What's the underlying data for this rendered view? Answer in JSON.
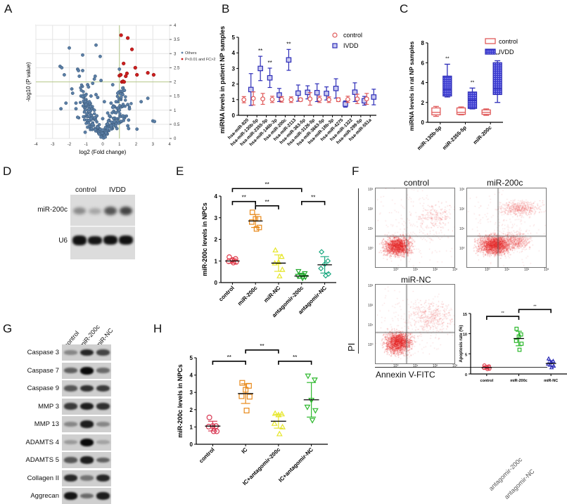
{
  "panels": {
    "A": "A",
    "B": "B",
    "C": "C",
    "D": "D",
    "E": "E",
    "F": "F",
    "G": "G",
    "H": "H"
  },
  "chart_data": [
    {
      "id": "A",
      "type": "scatter",
      "title": "",
      "xlabel": "log2 (Fold change)",
      "ylabel": "-log10 (P value)",
      "xlim": [
        -4,
        4
      ],
      "ylim": [
        0,
        4
      ],
      "xticks": [
        "-4",
        "-3",
        "-2",
        "-1",
        "0",
        "1",
        "2",
        "3",
        "4"
      ],
      "yticks": [
        "0",
        "0.5",
        "1",
        "1.5",
        "2",
        "2.5",
        "3",
        "3.5",
        "4"
      ],
      "threshold_lines": {
        "x": 1,
        "y": 2
      },
      "grid": true,
      "legend": {
        "position": "right",
        "entries": [
          {
            "label": "Others",
            "color": "#5b7fa6"
          },
          {
            "label": "P<0.01 and FC>2",
            "color": "#cc1f1f"
          }
        ]
      },
      "series": [
        {
          "name": "P<0.01 and FC>2",
          "color": "#cc1f1f",
          "points": [
            [
              1.1,
              3.65
            ],
            [
              1.5,
              3.55
            ],
            [
              1.75,
              3.15
            ],
            [
              1.25,
              2.65
            ],
            [
              1.95,
              2.5
            ],
            [
              1.45,
              2.3
            ],
            [
              1.38,
              2.2
            ],
            [
              2.05,
              2.25
            ],
            [
              2.7,
              2.32
            ],
            [
              3.05,
              2.25
            ],
            [
              1.0,
              2.22
            ],
            [
              1.15,
              2.0
            ],
            [
              1.22,
              2.02
            ],
            [
              1.28,
              2.0
            ],
            [
              1.08,
              2.25
            ]
          ]
        },
        {
          "name": "Others",
          "color": "#5b7fa6",
          "points": [
            [
              -2.0,
              3.2
            ],
            [
              -0.4,
              3.3
            ],
            [
              -1.2,
              2.95
            ],
            [
              -0.15,
              2.9
            ],
            [
              -2.55,
              2.55
            ],
            [
              -2.45,
              2.5
            ],
            [
              -2.3,
              2.25
            ],
            [
              -1.5,
              2.45
            ],
            [
              -1.45,
              2.4
            ],
            [
              -1.2,
              2.4
            ],
            [
              -1.4,
              2.2
            ],
            [
              -0.45,
              2.2
            ],
            [
              -0.5,
              2.1
            ],
            [
              -0.1,
              2.05
            ],
            [
              1.0,
              2.45
            ],
            [
              -0.6,
              1.95
            ],
            [
              -0.9,
              1.9
            ],
            [
              -0.85,
              1.82
            ],
            [
              -1.85,
              1.75
            ],
            [
              -1.8,
              1.6
            ],
            [
              -1.3,
              1.5
            ],
            [
              -1.2,
              1.48
            ],
            [
              -0.7,
              1.5
            ],
            [
              -0.4,
              1.55
            ],
            [
              -0.3,
              1.45
            ],
            [
              0.6,
              1.9
            ],
            [
              0.9,
              1.6
            ],
            [
              1.2,
              1.55
            ],
            [
              1.3,
              1.7
            ],
            [
              1.1,
              1.45
            ],
            [
              2.7,
              1.42
            ],
            [
              2.3,
              1.3
            ],
            [
              -2.2,
              1.25
            ],
            [
              -1.6,
              1.25
            ],
            [
              -1.0,
              1.2
            ],
            [
              -0.8,
              1.3
            ],
            [
              0.1,
              1.3
            ],
            [
              0.5,
              1.25
            ],
            [
              0.8,
              1.3
            ],
            [
              1.5,
              1.2
            ],
            [
              1.6,
              1.05
            ],
            [
              -2.5,
              1.05
            ],
            [
              -1.5,
              0.75
            ],
            [
              -1.6,
              1.05
            ],
            [
              -0.5,
              1.0
            ],
            [
              0.0,
              0.7
            ],
            [
              0.3,
              0.9
            ],
            [
              0.6,
              1.1
            ],
            [
              1.0,
              1.0
            ],
            [
              1.2,
              0.8
            ],
            [
              1.55,
              0.65
            ],
            [
              1.5,
              0.45
            ],
            [
              1.55,
              0.35
            ],
            [
              2.05,
              0.33
            ],
            [
              3.0,
              0.62
            ],
            [
              3.1,
              0.6
            ],
            [
              -1.05,
              0.22
            ],
            [
              -0.6,
              0.5
            ],
            [
              -0.3,
              0.4
            ],
            [
              0.0,
              0.3
            ],
            [
              0.3,
              0.35
            ],
            [
              0.5,
              0.45
            ],
            [
              -0.2,
              0.15
            ],
            [
              0.1,
              0.1
            ],
            [
              0.2,
              0.2
            ],
            [
              -0.1,
              0.05
            ],
            [
              0.05,
              0.02
            ],
            [
              0.15,
              0.05
            ],
            [
              -0.35,
              0.8
            ],
            [
              0.4,
              0.8
            ],
            [
              -0.7,
              0.7
            ],
            [
              0.7,
              0.6
            ],
            [
              -0.9,
              0.4
            ],
            [
              0.85,
              0.35
            ]
          ]
        }
      ]
    },
    {
      "id": "B",
      "type": "scatter",
      "title": "",
      "xlabel": "",
      "ylabel": "miRNA levels in patient NP samples",
      "ylim": [
        0,
        5
      ],
      "yticks": [
        "0",
        "1",
        "2",
        "3",
        "4",
        "5"
      ],
      "categories": [
        "hsa-miR-920",
        "hsa-miR-130b-5p",
        "hsa-miR-2355-5p",
        "hsa-miR-146b-3p",
        "hsa-miR-200c",
        "hsa-miR-2113",
        "hsa-miR-363-5p",
        "hsa-miR-3126-5p",
        "hsa-miR-3663-5p",
        "hsa-miR-18b-3p",
        "hsa-miR-4275",
        "hsa-miR-1322",
        "hsa-miR-299-5p",
        "hsa-miR-551a"
      ],
      "legend": {
        "position": "top-right",
        "entries": [
          {
            "label": "control",
            "marker": "circle",
            "color": "#e05a5a"
          },
          {
            "label": "IVDD",
            "marker": "square",
            "color": "#2d2db8"
          }
        ]
      },
      "series": [
        {
          "name": "control",
          "color": "#e05a5a",
          "mean": [
            1.0,
            1.08,
            1.05,
            1.02,
            1.02,
            1.0,
            1.0,
            1.05,
            1.02,
            1.0,
            1.0,
            1.02,
            1.05,
            1.05
          ],
          "sd": [
            0.2,
            0.42,
            0.35,
            0.2,
            0.18,
            0.18,
            0.1,
            0.4,
            0.2,
            0.18,
            0.12,
            0.2,
            0.3,
            0.35
          ]
        },
        {
          "name": "IVDD",
          "color": "#2d2db8",
          "mean": [
            1.65,
            3.0,
            2.4,
            1.3,
            3.55,
            1.42,
            1.47,
            1.45,
            1.4,
            1.72,
            0.72,
            1.48,
            0.93,
            1.17
          ],
          "sd": [
            1.02,
            0.78,
            0.62,
            0.42,
            0.67,
            0.52,
            0.42,
            0.57,
            0.42,
            0.62,
            0.2,
            0.6,
            0.28,
            0.5
          ]
        }
      ],
      "significance": [
        {
          "index": 1,
          "label": "**"
        },
        {
          "index": 2,
          "label": "**"
        },
        {
          "index": 4,
          "label": "**"
        }
      ]
    },
    {
      "id": "C",
      "type": "box",
      "title": "",
      "xlabel": "",
      "ylabel": "miRNA levels in rat NP samples",
      "ylim": [
        0,
        8
      ],
      "yticks": [
        "0",
        "2",
        "4",
        "6",
        "8"
      ],
      "categories": [
        "miR-130b-5p",
        "miR-2355-5p",
        "miR-200c"
      ],
      "legend": {
        "position": "top-right",
        "entries": [
          {
            "label": "control",
            "color": "#e05a5a"
          },
          {
            "label": "IVDD",
            "color": "#2d2db8"
          }
        ]
      },
      "series": [
        {
          "name": "control",
          "color": "#e05a5a",
          "boxes": [
            [
              0.6,
              0.75,
              1.0,
              1.45,
              1.6
            ],
            [
              0.75,
              0.8,
              1.0,
              1.45,
              1.55
            ],
            [
              0.7,
              0.8,
              1.0,
              1.25,
              1.35
            ]
          ]
        },
        {
          "name": "IVDD",
          "color": "#2d2db8",
          "boxes": [
            [
              2.55,
              2.65,
              3.3,
              4.65,
              5.85
            ],
            [
              1.35,
              1.4,
              2.25,
              3.05,
              3.45
            ],
            [
              2.0,
              2.8,
              3.4,
              6.0,
              6.2
            ]
          ]
        }
      ],
      "significance": [
        {
          "index": 0,
          "label": "**"
        },
        {
          "index": 1,
          "label": "**"
        },
        {
          "index": 2,
          "label": "**"
        }
      ]
    },
    {
      "id": "E",
      "type": "scatter",
      "title": "",
      "xlabel": "",
      "ylabel": "miR-200c levels in NPCs",
      "ylim": [
        0,
        4
      ],
      "yticks": [
        "0",
        "1",
        "2",
        "3",
        "4"
      ],
      "categories": [
        "control",
        "miR-200c",
        "miR-NC",
        "antagomir-200c",
        "antagomir-NC"
      ],
      "groups": [
        {
          "name": "control",
          "color": "#e03a4a",
          "marker": "circle",
          "mean": 1.0,
          "sd": 0.1,
          "points": [
            1.18,
            1.1,
            1.05,
            0.98,
            0.95,
            0.92
          ]
        },
        {
          "name": "miR-200c",
          "color": "#e8891a",
          "marker": "square",
          "mean": 2.85,
          "sd": 0.3,
          "points": [
            3.25,
            2.95,
            2.95,
            2.8,
            2.55,
            2.48
          ]
        },
        {
          "name": "miR-NC",
          "color": "#e6e62a",
          "marker": "triangle",
          "mean": 0.9,
          "sd": 0.38,
          "points": [
            1.5,
            1.2,
            0.95,
            0.9,
            0.6,
            0.3
          ]
        },
        {
          "name": "antagomir-200c",
          "color": "#1ea82a",
          "marker": "triangle-down",
          "mean": 0.3,
          "sd": 0.1,
          "points": [
            0.52,
            0.42,
            0.35,
            0.3,
            0.25,
            0.2
          ]
        },
        {
          "name": "antagomir-NC",
          "color": "#1aa880",
          "marker": "diamond",
          "mean": 0.82,
          "sd": 0.38,
          "points": [
            1.42,
            1.0,
            0.85,
            0.65,
            0.4,
            0.32
          ]
        }
      ],
      "significance": [
        {
          "from": 0,
          "to": 1,
          "y": 3.75,
          "label": "**"
        },
        {
          "from": 1,
          "to": 2,
          "y": 3.55,
          "label": "**"
        },
        {
          "from": 0,
          "to": 3,
          "y": 4.35,
          "label": "**"
        },
        {
          "from": 3,
          "to": 4,
          "y": 3.75,
          "label": "**"
        }
      ]
    },
    {
      "id": "F-inset",
      "type": "scatter",
      "title": "",
      "xlabel": "",
      "ylabel": "Apoptosis rate (%)",
      "ylim": [
        0,
        15
      ],
      "yticks": [
        "0",
        "5",
        "10",
        "15"
      ],
      "categories": [
        "control",
        "miR-200c",
        "miR-NC"
      ],
      "groups": [
        {
          "name": "control",
          "color": "#e03a4a",
          "marker": "circle",
          "mean": 1.6,
          "sd": 0.4,
          "points": [
            2.1,
            1.9,
            1.7,
            1.5,
            1.3,
            1.2
          ]
        },
        {
          "name": "miR-200c",
          "color": "#2db82d",
          "marker": "square",
          "mean": 8.8,
          "sd": 1.8,
          "points": [
            11.2,
            9.8,
            9.3,
            8.2,
            7.5,
            6.0
          ]
        },
        {
          "name": "miR-NC",
          "color": "#2d2db8",
          "marker": "triangle",
          "mean": 2.6,
          "sd": 0.7,
          "points": [
            3.8,
            3.2,
            2.9,
            2.5,
            2.0,
            1.6
          ]
        }
      ],
      "significance": [
        {
          "from": 0,
          "to": 1,
          "y": 14.3,
          "label": "**"
        },
        {
          "from": 1,
          "to": 2,
          "y": 16.0,
          "label": "**"
        }
      ]
    },
    {
      "id": "H",
      "type": "scatter",
      "title": "",
      "xlabel": "",
      "ylabel": "miR-200c levels in NPCs",
      "ylim": [
        0,
        5
      ],
      "yticks": [
        "0",
        "1",
        "2",
        "3",
        "4",
        "5"
      ],
      "categories": [
        "control",
        "IC",
        "IC+antagomir-200c",
        "IC+antagomir-NC"
      ],
      "groups": [
        {
          "name": "control",
          "color": "#d93a55",
          "marker": "circle",
          "mean": 1.05,
          "sd": 0.28,
          "points": [
            1.55,
            1.05,
            1.05,
            1.02,
            0.75,
            0.75
          ]
        },
        {
          "name": "IC",
          "color": "#e8891a",
          "marker": "square",
          "mean": 2.93,
          "sd": 0.57,
          "points": [
            3.55,
            3.38,
            3.15,
            2.78,
            2.75,
            1.95
          ]
        },
        {
          "name": "IC+antagomir-200c",
          "color": "#e6e62a",
          "marker": "triangle",
          "mean": 1.33,
          "sd": 0.4,
          "points": [
            1.78,
            1.75,
            1.7,
            1.2,
            1.0,
            0.6
          ]
        },
        {
          "name": "IC+antagomir-NC",
          "color": "#2db82d",
          "marker": "triangle-down",
          "mean": 2.57,
          "sd": 1.0,
          "points": [
            3.95,
            3.72,
            2.55,
            2.15,
            1.95,
            1.38
          ]
        }
      ],
      "significance": [
        {
          "from": 0,
          "to": 1,
          "y": 4.8,
          "label": "**"
        },
        {
          "from": 1,
          "to": 2,
          "y": 5.45,
          "label": "**"
        },
        {
          "from": 2,
          "to": 3,
          "y": 4.8,
          "label": "**"
        }
      ]
    }
  ],
  "panel_D": {
    "column_labels": [
      "control",
      "IVDD"
    ],
    "row_labels": [
      "miR-200c",
      "U6"
    ]
  },
  "panel_F": {
    "plot_titles": [
      "control",
      "miR-200c",
      "miR-NC"
    ],
    "ylabel": "PI",
    "xlabel": "Annexin V-FITC",
    "axis_ticks": [
      "10⁰",
      "10¹",
      "10²",
      "10³"
    ]
  },
  "panel_G": {
    "column_labels": [
      "control",
      "miR-200c",
      "miR-NC"
    ],
    "row_labels": [
      "Caspase 3",
      "Caspase 7",
      "Caspase 9",
      "MMP 3",
      "MMP 13",
      "ADAMTS 4",
      "ADAMTS 5",
      "Collagen II",
      "Aggrecan"
    ]
  },
  "stray_labels": [
    "antagomir-200c",
    "antagomir-NC"
  ]
}
